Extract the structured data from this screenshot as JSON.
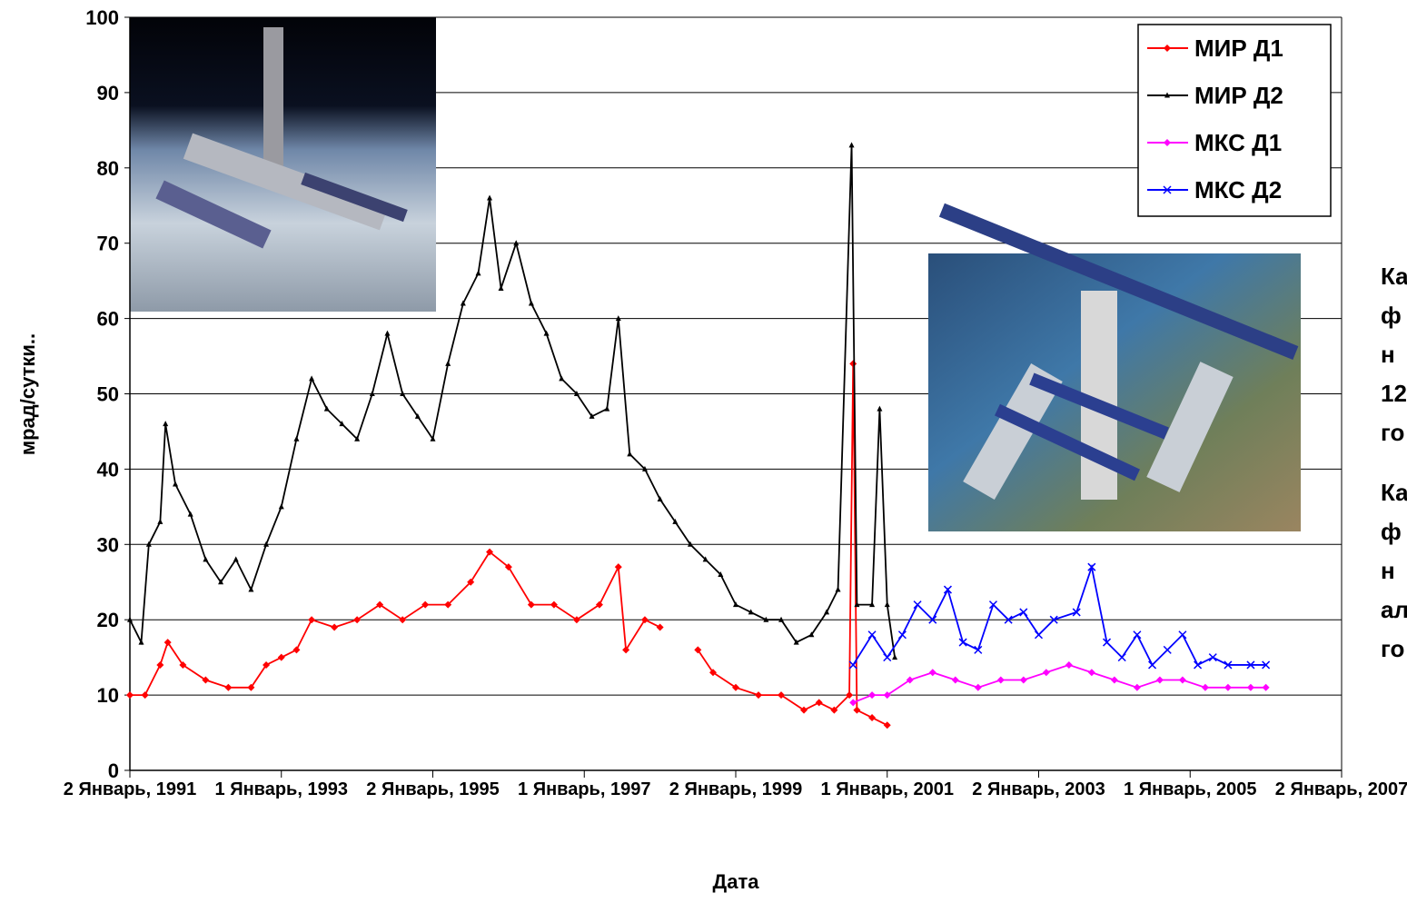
{
  "chart_data": {
    "type": "line",
    "ylabel": "мрад/сутки..",
    "xlabel": "Дата",
    "ylim": [
      0,
      100
    ],
    "yticks": [
      0,
      10,
      20,
      30,
      40,
      50,
      60,
      70,
      80,
      90,
      100
    ],
    "grid": true,
    "xlim": [
      1991,
      2007
    ],
    "xticks": [
      {
        "value": 1991,
        "label": "2 Январь, 1991"
      },
      {
        "value": 1993,
        "label": "1 Январь, 1993"
      },
      {
        "value": 1995,
        "label": "2 Январь, 1995"
      },
      {
        "value": 1997,
        "label": "1 Январь, 1997"
      },
      {
        "value": 1999,
        "label": "2 Январь, 1999"
      },
      {
        "value": 2001,
        "label": "1 Январь, 2001"
      },
      {
        "value": 2003,
        "label": "2 Январь, 2003"
      },
      {
        "value": 2005,
        "label": "1 Январь, 2005"
      },
      {
        "value": 2007,
        "label": "2 Январь, 2007"
      }
    ],
    "legend": "upper right",
    "series": [
      {
        "name": "МИР Д1",
        "color": "#ff0000",
        "marker": "diamond",
        "x": [
          1991.0,
          1991.2,
          1991.4,
          1991.5,
          1991.7,
          1992.0,
          1992.3,
          1992.6,
          1992.8,
          1993.0,
          1993.2,
          1993.4,
          1993.7,
          1994.0,
          1994.3,
          1994.6,
          1994.9,
          1995.2,
          1995.5,
          1995.75,
          1996.0,
          1996.3,
          1996.6,
          1996.9,
          1997.2,
          1997.45,
          1997.55,
          1997.8,
          1998.0,
          1998.2,
          1998.5,
          1998.7,
          1999.0,
          1999.3,
          1999.6,
          1999.9,
          2000.1,
          2000.3,
          2000.5,
          2000.55,
          2000.6,
          2000.8,
          2001.0
        ],
        "values": [
          10,
          10,
          14,
          17,
          14,
          12,
          11,
          11,
          14,
          15,
          16,
          20,
          19,
          20,
          22,
          20,
          22,
          22,
          25,
          29,
          27,
          22,
          22,
          20,
          22,
          27,
          16,
          20,
          19,
          null,
          16,
          13,
          11,
          10,
          10,
          8,
          9,
          8,
          10,
          54,
          8,
          7,
          6
        ]
      },
      {
        "name": "МИР Д2",
        "color": "#000000",
        "marker": "triangle",
        "x": [
          1991.0,
          1991.15,
          1991.25,
          1991.4,
          1991.47,
          1991.6,
          1991.8,
          1992.0,
          1992.2,
          1992.4,
          1992.6,
          1992.8,
          1993.0,
          1993.2,
          1993.4,
          1993.6,
          1993.8,
          1994.0,
          1994.2,
          1994.4,
          1994.6,
          1994.8,
          1995.0,
          1995.2,
          1995.4,
          1995.6,
          1995.75,
          1995.9,
          1996.1,
          1996.3,
          1996.5,
          1996.7,
          1996.9,
          1997.1,
          1997.3,
          1997.45,
          1997.6,
          1997.8,
          1998.0,
          1998.2,
          1998.4,
          1998.6,
          1998.8,
          1999.0,
          1999.2,
          1999.4,
          1999.6,
          1999.8,
          2000.0,
          2000.2,
          2000.35,
          2000.53,
          2000.6,
          2000.8,
          2000.9,
          2001.0,
          2001.1
        ],
        "values": [
          20,
          17,
          30,
          33,
          46,
          38,
          34,
          28,
          25,
          28,
          24,
          30,
          35,
          44,
          52,
          48,
          46,
          44,
          50,
          58,
          50,
          47,
          44,
          54,
          62,
          66,
          76,
          64,
          70,
          62,
          58,
          52,
          50,
          47,
          48,
          60,
          42,
          40,
          36,
          33,
          30,
          28,
          26,
          22,
          21,
          20,
          20,
          17,
          18,
          21,
          24,
          83,
          22,
          22,
          48,
          22,
          15
        ]
      },
      {
        "name": "МКС Д1",
        "color": "#ff00ff",
        "marker": "diamond",
        "x": [
          2000.55,
          2000.8,
          2001.0,
          2001.3,
          2001.6,
          2001.9,
          2002.2,
          2002.5,
          2002.8,
          2003.1,
          2003.4,
          2003.7,
          2004.0,
          2004.3,
          2004.6,
          2004.9,
          2005.2,
          2005.5,
          2005.8,
          2006.0
        ],
        "values": [
          9,
          10,
          10,
          12,
          13,
          12,
          11,
          12,
          12,
          13,
          14,
          13,
          12,
          11,
          12,
          12,
          11,
          11,
          11,
          11
        ]
      },
      {
        "name": "МКС Д2",
        "color": "#0000ff",
        "marker": "x",
        "x": [
          2000.55,
          2000.8,
          2001.0,
          2001.2,
          2001.4,
          2001.6,
          2001.8,
          2002.0,
          2002.2,
          2002.4,
          2002.6,
          2002.8,
          2003.0,
          2003.2,
          2003.5,
          2003.7,
          2003.9,
          2004.1,
          2004.3,
          2004.5,
          2004.7,
          2004.9,
          2005.1,
          2005.3,
          2005.5,
          2005.8,
          2006.0
        ],
        "values": [
          14,
          18,
          15,
          18,
          22,
          20,
          24,
          17,
          16,
          22,
          20,
          21,
          18,
          20,
          21,
          27,
          17,
          15,
          18,
          14,
          16,
          18,
          14,
          15,
          14,
          14,
          14
        ]
      }
    ]
  },
  "side_text": [
    [
      "Ка",
      "ф",
      "н",
      "12",
      "го"
    ],
    [
      "Ка",
      "ф",
      "н",
      "ал",
      "го"
    ]
  ]
}
